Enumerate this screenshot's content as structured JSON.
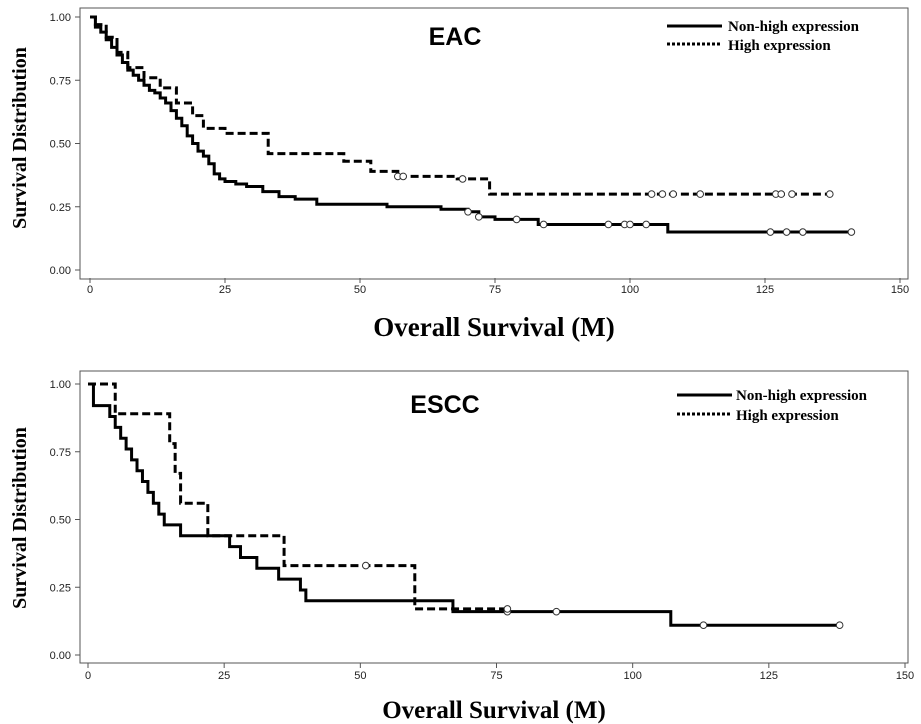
{
  "chart_data": [
    {
      "type": "line",
      "title": "EAC",
      "xlabel": "Overall Survival (M)",
      "ylabel": "Survival Distribution",
      "xlim": [
        0,
        150
      ],
      "ylim": [
        0,
        1
      ],
      "x_ticks": [
        "0",
        "25",
        "50",
        "75",
        "100",
        "125",
        "150"
      ],
      "y_ticks": [
        "0.00",
        "0.25",
        "0.50",
        "0.75",
        "1.00"
      ],
      "legend_position": "top-right",
      "series": [
        {
          "name": "Non-high expression",
          "style": "solid",
          "x": [
            0,
            1,
            2,
            3,
            4,
            5,
            6,
            7,
            8,
            9,
            10,
            11,
            12,
            13,
            14,
            15,
            16,
            17,
            18,
            19,
            20,
            21,
            22,
            23,
            24,
            25,
            27,
            29,
            32,
            35,
            38,
            42,
            48,
            55,
            65,
            70,
            72,
            75,
            83,
            90,
            100,
            107,
            120,
            141
          ],
          "y": [
            1.0,
            0.96,
            0.94,
            0.91,
            0.88,
            0.85,
            0.82,
            0.79,
            0.77,
            0.75,
            0.73,
            0.71,
            0.7,
            0.68,
            0.66,
            0.63,
            0.6,
            0.57,
            0.53,
            0.5,
            0.47,
            0.45,
            0.42,
            0.38,
            0.36,
            0.35,
            0.34,
            0.33,
            0.31,
            0.29,
            0.28,
            0.26,
            0.26,
            0.25,
            0.24,
            0.23,
            0.21,
            0.2,
            0.18,
            0.18,
            0.18,
            0.15,
            0.15,
            0.15
          ],
          "censored": [
            70,
            72,
            79,
            84,
            96,
            99,
            100,
            103,
            126,
            129,
            132,
            141
          ]
        },
        {
          "name": "High expression",
          "style": "dashed",
          "x": [
            0,
            1,
            3,
            5,
            7,
            10,
            13,
            16,
            19,
            21,
            25,
            29,
            33,
            43,
            47,
            52,
            57,
            62,
            68,
            72,
            74,
            137
          ],
          "y": [
            1.0,
            0.97,
            0.92,
            0.86,
            0.8,
            0.76,
            0.72,
            0.66,
            0.61,
            0.56,
            0.54,
            0.54,
            0.46,
            0.46,
            0.43,
            0.39,
            0.37,
            0.37,
            0.36,
            0.36,
            0.3,
            0.3
          ],
          "censored": [
            57,
            58,
            69,
            104,
            106,
            108,
            113,
            127,
            128,
            130,
            137
          ]
        }
      ]
    },
    {
      "type": "line",
      "title": "ESCC",
      "xlabel": "Overall Survival (M)",
      "ylabel": "Survival Distribution",
      "xlim": [
        0,
        150
      ],
      "ylim": [
        0,
        1
      ],
      "x_ticks": [
        "0",
        "25",
        "50",
        "75",
        "100",
        "125",
        "150"
      ],
      "y_ticks": [
        "0.00",
        "0.25",
        "0.50",
        "0.75",
        "1.00"
      ],
      "legend_position": "top-right",
      "series": [
        {
          "name": "Non-high expression",
          "style": "solid",
          "x": [
            0,
            1,
            3,
            4,
            5,
            6,
            7,
            8,
            9,
            10,
            11,
            12,
            13,
            14,
            17,
            24,
            26,
            28,
            31,
            35,
            39,
            40,
            60,
            67,
            107,
            138
          ],
          "y": [
            1.0,
            0.92,
            0.92,
            0.88,
            0.84,
            0.8,
            0.76,
            0.72,
            0.68,
            0.64,
            0.6,
            0.56,
            0.52,
            0.48,
            0.44,
            0.44,
            0.4,
            0.36,
            0.32,
            0.28,
            0.24,
            0.2,
            0.2,
            0.16,
            0.11,
            0.11
          ],
          "censored": [
            77,
            86,
            113,
            138
          ]
        },
        {
          "name": "High expression",
          "style": "dashed",
          "x": [
            0,
            5,
            15,
            16,
            17,
            18,
            22,
            36,
            60,
            77
          ],
          "y": [
            1.0,
            0.89,
            0.78,
            0.67,
            0.56,
            0.56,
            0.44,
            0.33,
            0.17,
            0.17
          ],
          "censored": [
            51,
            77
          ]
        }
      ]
    }
  ]
}
